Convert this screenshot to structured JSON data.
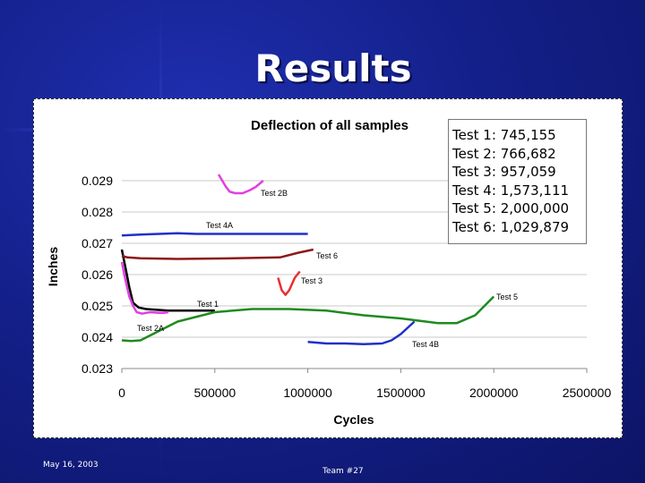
{
  "slide": {
    "title": "Results",
    "footer_date": "May 16, 2003",
    "footer_team": "Team #27"
  },
  "summary": [
    {
      "label": "Test 1:",
      "value": "745,155"
    },
    {
      "label": "Test 2:",
      "value": "766,682"
    },
    {
      "label": "Test 3:",
      "value": "957,059"
    },
    {
      "label": "Test 4:",
      "value": "1,573,111"
    },
    {
      "label": "Test 5:",
      "value": "2,000,000"
    },
    {
      "label": "Test 6:",
      "value": "1,029,879"
    }
  ],
  "chart_data": {
    "type": "line",
    "title": "Deflection of all samples",
    "xlabel": "Cycles",
    "ylabel": "Inches",
    "xlim": [
      0,
      2500000
    ],
    "ylim": [
      0.023,
      0.029
    ],
    "xticks": [
      "0",
      "500000",
      "1000000",
      "1500000",
      "2000000",
      "2500000"
    ],
    "yticks": [
      "0.023",
      "0.024",
      "0.025",
      "0.026",
      "0.027",
      "0.028",
      "0.029"
    ],
    "grid": true,
    "series": [
      {
        "name": "Test 1",
        "color": "#000000",
        "x": [
          0,
          20000,
          40000,
          60000,
          90000,
          130000,
          180000,
          250000,
          350000,
          500000
        ],
        "y": [
          0.0268,
          0.0262,
          0.0256,
          0.0251,
          0.02495,
          0.0249,
          0.02488,
          0.02485,
          0.02485,
          0.02485
        ]
      },
      {
        "name": "Test 2A",
        "color": "#e040e0",
        "x": [
          0,
          20000,
          40000,
          60000,
          80000,
          110000,
          150000,
          200000,
          230000,
          250000
        ],
        "y": [
          0.0264,
          0.0258,
          0.0253,
          0.025,
          0.0248,
          0.02475,
          0.0248,
          0.02478,
          0.02478,
          0.0248
        ]
      },
      {
        "name": "Test 2B",
        "color": "#e040e0",
        "x": [
          520000,
          540000,
          560000,
          580000,
          610000,
          650000,
          690000,
          720000,
          740000,
          760000
        ],
        "y": [
          0.0292,
          0.029,
          0.0288,
          0.02865,
          0.0286,
          0.0286,
          0.0287,
          0.0288,
          0.0289,
          0.029
        ]
      },
      {
        "name": "Test 3",
        "color": "#e83030",
        "x": [
          840000,
          860000,
          880000,
          900000,
          930000,
          957059
        ],
        "y": [
          0.0259,
          0.0255,
          0.02535,
          0.0255,
          0.0259,
          0.0261
        ]
      },
      {
        "name": "Test 4A",
        "color": "#2030c8",
        "x": [
          0,
          100000,
          200000,
          300000,
          400000,
          600000,
          800000,
          1000000
        ],
        "y": [
          0.02725,
          0.02728,
          0.0273,
          0.02732,
          0.0273,
          0.0273,
          0.0273,
          0.0273
        ]
      },
      {
        "name": "Test 4B",
        "color": "#2030c8",
        "x": [
          1000000,
          1100000,
          1200000,
          1300000,
          1400000,
          1450000,
          1500000,
          1573111
        ],
        "y": [
          0.02385,
          0.0238,
          0.0238,
          0.02378,
          0.0238,
          0.0239,
          0.0241,
          0.0245
        ]
      },
      {
        "name": "Test 5",
        "color": "#1f8a1f",
        "x": [
          0,
          50000,
          100000,
          200000,
          300000,
          500000,
          700000,
          900000,
          1100000,
          1300000,
          1500000,
          1700000,
          1800000,
          1900000,
          1950000,
          2000000
        ],
        "y": [
          0.0239,
          0.02388,
          0.0239,
          0.0242,
          0.0245,
          0.0248,
          0.0249,
          0.0249,
          0.02485,
          0.0247,
          0.0246,
          0.02445,
          0.02445,
          0.0247,
          0.025,
          0.0253
        ]
      },
      {
        "name": "Test 6",
        "color": "#8b1a1a",
        "x": [
          0,
          30000,
          100000,
          300000,
          600000,
          850000,
          950000,
          1029879
        ],
        "y": [
          0.0266,
          0.02655,
          0.02652,
          0.0265,
          0.02652,
          0.02655,
          0.0267,
          0.0268
        ]
      }
    ]
  }
}
